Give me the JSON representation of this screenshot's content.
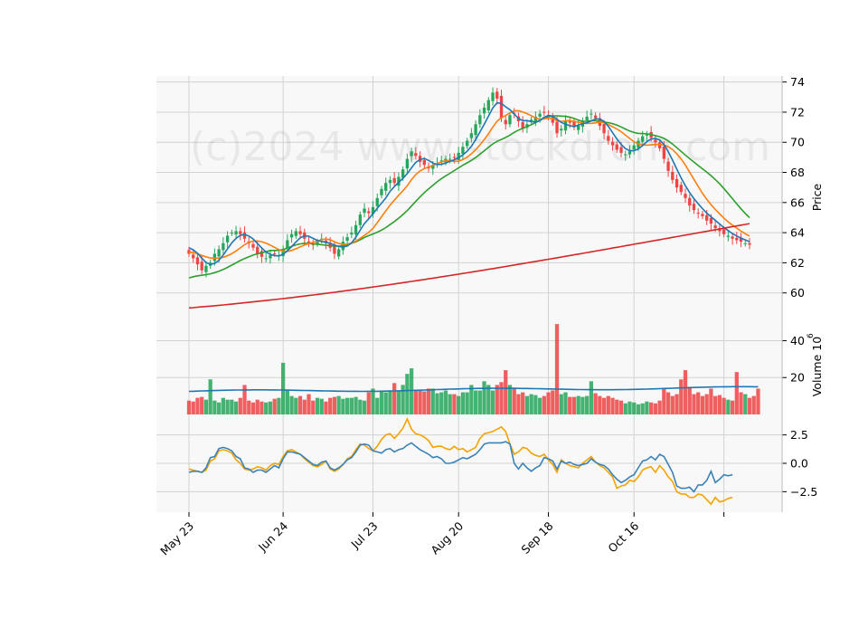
{
  "watermark": "(c)2024 www.stockdrom.com",
  "colors": {
    "up": "#26a65b",
    "down": "#ef4444",
    "panel_bg": "#f8f8f8",
    "grid": "#d2d2d2",
    "ma_blue": "#1f77b4",
    "ma_orange": "#ff7f0e",
    "ma_green": "#2ca02c",
    "ma_red": "#d62728",
    "osc_blue": "#3b83b7",
    "osc_orange": "#f5a300"
  },
  "chart_data": {
    "type": "candlestick",
    "x_tick_labels": [
      "May 23",
      "Jun 24",
      "Jul 23",
      "Aug 20",
      "Sep 18",
      "Oct 16"
    ],
    "x_tick_index": [
      0,
      22,
      43,
      63,
      84,
      104
    ],
    "n_bars": 132,
    "price_panel": {
      "ylabel": "Price",
      "yticks": [
        60,
        62,
        64,
        66,
        68,
        70,
        72,
        74
      ],
      "ylim": [
        58.3,
        74.4
      ],
      "closes": [
        62.6,
        62.3,
        61.9,
        61.5,
        61.8,
        62.0,
        62.6,
        62.9,
        63.3,
        63.8,
        64.0,
        64.1,
        63.9,
        63.6,
        63.3,
        63.0,
        62.6,
        62.4,
        62.3,
        62.5,
        62.6,
        62.5,
        62.9,
        63.5,
        63.9,
        64.1,
        63.9,
        63.6,
        63.3,
        63.2,
        63.4,
        63.6,
        63.3,
        63.0,
        62.6,
        62.9,
        63.4,
        63.7,
        64.0,
        64.5,
        65.2,
        65.6,
        65.3,
        65.7,
        66.3,
        66.9,
        67.3,
        67.5,
        67.3,
        67.7,
        68.2,
        68.9,
        69.4,
        69.1,
        68.7,
        68.5,
        68.3,
        68.5,
        68.6,
        68.8,
        68.9,
        68.9,
        69.0,
        69.3,
        69.7,
        70.1,
        70.6,
        71.2,
        71.8,
        72.3,
        72.8,
        73.3,
        72.9,
        71.6,
        71.2,
        71.8,
        71.9,
        71.4,
        70.9,
        71.2,
        71.5,
        71.7,
        71.9,
        72.0,
        71.8,
        71.3,
        70.6,
        70.9,
        71.4,
        71.3,
        71.0,
        71.1,
        71.4,
        71.7,
        71.9,
        71.6,
        71.1,
        70.6,
        70.1,
        69.8,
        69.5,
        69.3,
        69.2,
        69.4,
        69.8,
        70.1,
        70.4,
        70.5,
        70.3,
        70.0,
        69.6,
        68.9,
        68.1,
        67.5,
        67.0,
        66.7,
        66.3,
        65.8,
        65.5,
        65.3,
        65.1,
        64.8,
        64.6,
        64.3,
        64.1,
        63.9,
        63.8,
        63.6,
        63.5,
        63.4,
        63.3,
        63.2
      ],
      "ma_windows": [
        5,
        10,
        20,
        200
      ],
      "ma_start": {
        "5": 63.0,
        "10": 62.7,
        "20": 61.0,
        "200": 59.0
      },
      "ma_end": {
        "200": 64.6
      }
    },
    "volume_panel": {
      "ylabel": "Volume  10^6",
      "yticks": [
        20,
        40
      ],
      "ylim": [
        0,
        52
      ],
      "values": [
        7.5,
        7,
        9,
        9.5,
        8,
        19,
        7.5,
        6.5,
        9,
        8,
        8,
        7,
        9,
        16,
        7.5,
        6.5,
        8,
        7,
        6.5,
        7,
        8.5,
        9,
        28,
        13,
        10,
        9,
        10,
        8,
        11,
        7.5,
        9,
        8.5,
        7,
        9,
        9.5,
        10,
        8.5,
        9,
        9,
        9.5,
        8,
        7.5,
        12,
        14,
        9,
        13,
        12,
        13,
        17,
        13,
        16,
        22,
        25,
        13,
        13,
        12.5,
        14,
        14,
        11.5,
        12,
        13,
        11,
        11,
        10,
        12,
        12,
        16,
        13,
        13,
        18,
        16,
        13,
        16,
        17.5,
        24,
        16,
        14,
        11,
        12,
        10,
        11,
        10.5,
        9,
        10,
        12,
        13,
        49,
        11,
        12,
        9.5,
        9.5,
        10,
        9.5,
        10,
        18,
        11.5,
        10,
        9,
        10,
        9,
        8,
        7.5,
        6,
        7,
        6.5,
        5.5,
        6,
        7,
        6.5,
        6,
        7.5,
        14,
        12,
        10,
        11,
        19,
        24,
        15,
        11,
        12,
        10,
        11,
        14,
        10,
        10.5,
        9,
        8,
        7.5,
        23,
        12,
        11,
        9,
        10,
        14
      ],
      "vol_ma_start": 12.5,
      "vol_ma_end": 14.5
    },
    "oscillator_panel": {
      "yticks": [
        -2.5,
        0.0,
        2.5
      ],
      "ylim": [
        -4.3,
        4.3
      ],
      "series_blue": [
        -0.8,
        -0.7,
        -0.7,
        -0.8,
        -0.4,
        0.5,
        0.6,
        1.3,
        1.4,
        1.3,
        1.1,
        0.6,
        0.4,
        -0.4,
        -0.5,
        -0.8,
        -0.6,
        -0.6,
        -0.8,
        -0.5,
        -0.2,
        -0.4,
        0.4,
        1.0,
        1.0,
        0.9,
        0.8,
        0.5,
        0.2,
        -0.1,
        -0.2,
        0.1,
        0.2,
        -0.4,
        -0.6,
        -0.4,
        -0.1,
        0.3,
        0.5,
        1.0,
        1.6,
        1.7,
        1.6,
        1.1,
        1.0,
        0.9,
        1.2,
        1.3,
        1.0,
        1.2,
        1.3,
        1.6,
        1.8,
        1.5,
        1.2,
        1.0,
        0.8,
        0.5,
        0.6,
        0.4,
        0.0,
        0.0,
        0.1,
        0.3,
        0.5,
        0.4,
        0.6,
        0.8,
        1.2,
        1.7,
        1.8,
        1.8,
        1.8,
        1.8,
        1.9,
        1.7,
        0.0,
        -0.5,
        0.0,
        -0.4,
        -0.7,
        -0.4,
        -0.2,
        0.5,
        0.4,
        0.2,
        -0.5,
        0.2,
        0.0,
        0.1,
        -0.1,
        -0.2,
        -0.1,
        0.0,
        0.4,
        0.1,
        -0.1,
        -0.2,
        -0.5,
        -1.0,
        -1.4,
        -1.7,
        -1.5,
        -1.2,
        -1.0,
        -0.4,
        0.2,
        0.3,
        0.6,
        0.3,
        0.8,
        0.6,
        -0.1,
        -0.8,
        -2.0,
        -2.2,
        -2.2,
        -2.1,
        -2.5,
        -1.9,
        -1.9,
        -1.5,
        -0.7,
        -1.7,
        -1.4,
        -1.0,
        -1.1,
        -1.0
      ],
      "series_orange": [
        -0.5,
        -0.6,
        -0.7,
        -0.8,
        -0.6,
        0.2,
        0.4,
        1.1,
        1.2,
        1.1,
        0.9,
        0.3,
        0.0,
        -0.5,
        -0.6,
        -0.5,
        -0.3,
        -0.4,
        -0.6,
        -0.2,
        0.0,
        -0.1,
        0.6,
        1.1,
        1.2,
        1.0,
        0.8,
        0.4,
        0.1,
        -0.2,
        -0.3,
        -0.1,
        0.2,
        -0.5,
        -0.7,
        -0.5,
        -0.1,
        0.4,
        0.6,
        1.2,
        1.7,
        1.6,
        1.3,
        1.1,
        1.5,
        2.1,
        2.5,
        2.6,
        2.2,
        2.6,
        3.1,
        3.9,
        3.0,
        2.6,
        2.5,
        2.3,
        2.0,
        1.4,
        1.5,
        1.5,
        1.3,
        1.2,
        1.5,
        1.2,
        1.3,
        1.0,
        1.2,
        1.4,
        2.2,
        2.6,
        2.7,
        2.8,
        3.0,
        3.2,
        2.8,
        1.7,
        0.8,
        1.0,
        1.4,
        1.3,
        0.9,
        0.7,
        0.6,
        0.8,
        0.3,
        -0.1,
        -0.8,
        0.3,
        0.0,
        -0.2,
        -0.3,
        -0.4,
        0.0,
        0.3,
        0.6,
        0.1,
        -0.2,
        -0.4,
        -0.8,
        -1.2,
        -2.2,
        -2.0,
        -1.9,
        -1.5,
        -1.6,
        -1.2,
        -0.6,
        -0.4,
        -0.3,
        -0.8,
        -0.2,
        -0.6,
        -1.2,
        -1.6,
        -2.5,
        -2.7,
        -2.7,
        -3.0,
        -3.0,
        -2.7,
        -2.8,
        -3.2,
        -3.6,
        -3.0,
        -3.4,
        -3.3,
        -3.1,
        -3.0
      ]
    }
  }
}
